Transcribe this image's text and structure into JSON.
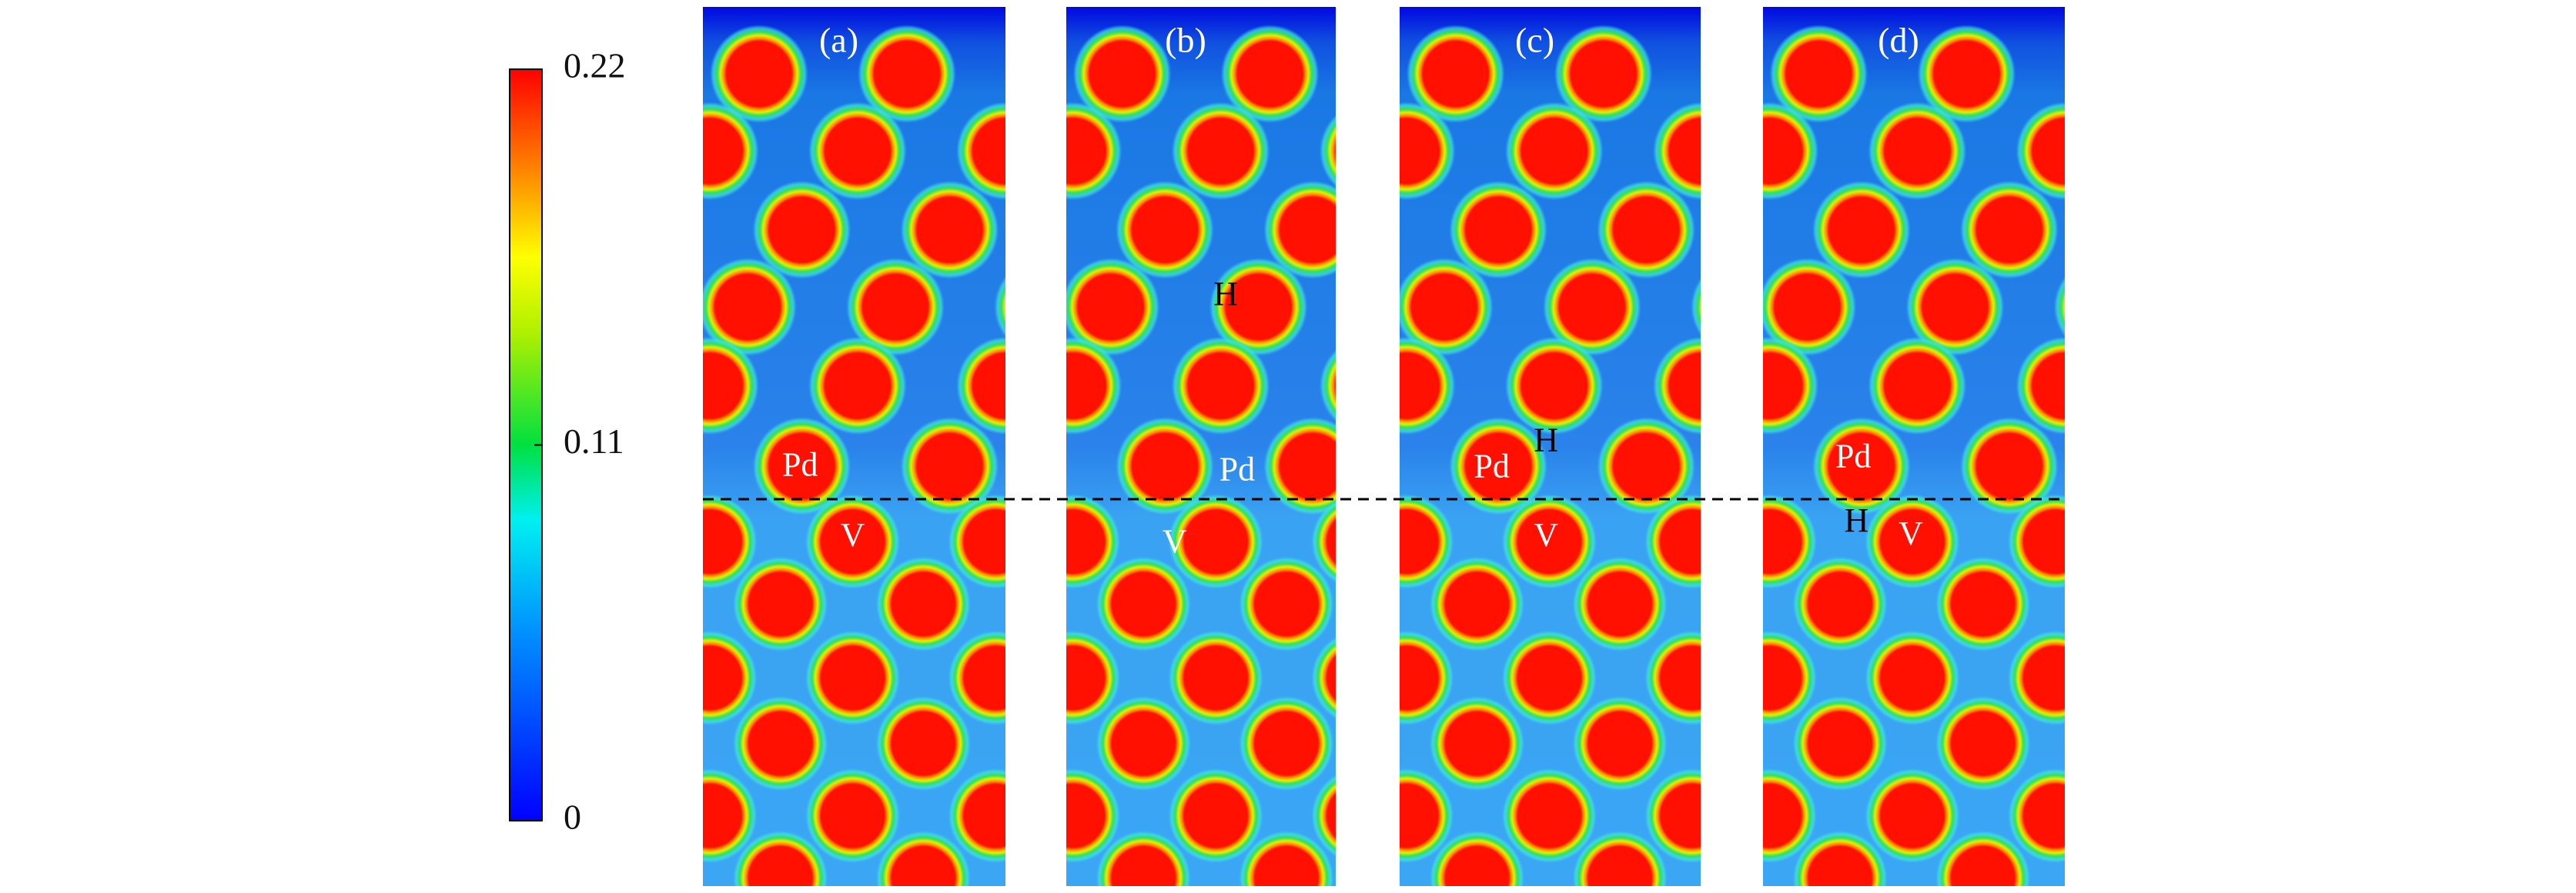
{
  "colorbar": {
    "lim": [
      0,
      0.22
    ],
    "ticks": [
      0,
      0.11,
      0.22
    ]
  },
  "panels": [
    {
      "label": "(a)",
      "annotations": [
        "Pd",
        "V"
      ]
    },
    {
      "label": "(b)",
      "annotations": [
        "H",
        "Pd",
        "V"
      ]
    },
    {
      "label": "(c)",
      "annotations": [
        "H",
        "Pd",
        "V"
      ]
    },
    {
      "label": "(d)",
      "annotations": [
        "Pd",
        "H",
        "V"
      ]
    }
  ]
}
